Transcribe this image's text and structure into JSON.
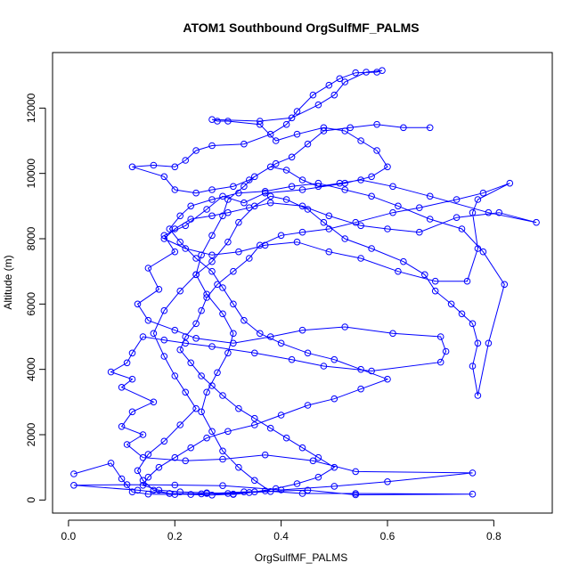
{
  "chart_data": {
    "type": "line",
    "title": "ATOM1 Southbound OrgSulfMF_PALMS",
    "xlabel": "OrgSulfMF_PALMS",
    "ylabel": "Altitude (m)",
    "xlim": [
      -0.03,
      0.91
    ],
    "ylim": [
      -400,
      13700
    ],
    "xticks": [
      "0.0",
      "0.2",
      "0.4",
      "0.6",
      "0.8"
    ],
    "xtick_values": [
      0.0,
      0.2,
      0.4,
      0.6,
      0.8
    ],
    "yticks": [
      "0",
      "2000",
      "4000",
      "6000",
      "8000",
      "10000",
      "12000"
    ],
    "ytick_values": [
      0,
      2000,
      4000,
      6000,
      8000,
      10000,
      12000
    ],
    "grid": false,
    "legend": "none",
    "series": [
      {
        "marker": "open-circle",
        "line": true,
        "color": "#0000ff",
        "points": [
          [
            0.01,
            800
          ],
          [
            0.08,
            1130
          ],
          [
            0.1,
            650
          ],
          [
            0.12,
            250
          ],
          [
            0.15,
            180
          ],
          [
            0.2,
            170
          ],
          [
            0.26,
            200
          ],
          [
            0.31,
            170
          ],
          [
            0.37,
            280
          ],
          [
            0.44,
            200
          ],
          [
            0.54,
            200
          ],
          [
            0.76,
            180
          ],
          [
            0.54,
            160
          ],
          [
            0.45,
            300
          ],
          [
            0.33,
            250
          ],
          [
            0.25,
            190
          ],
          [
            0.19,
            200
          ],
          [
            0.13,
            300
          ],
          [
            0.01,
            450
          ],
          [
            0.11,
            470
          ],
          [
            0.2,
            460
          ],
          [
            0.29,
            440
          ],
          [
            0.4,
            310
          ],
          [
            0.5,
            420
          ],
          [
            0.6,
            560
          ],
          [
            0.76,
            830
          ],
          [
            0.54,
            870
          ],
          [
            0.46,
            1200
          ],
          [
            0.37,
            1380
          ],
          [
            0.29,
            1250
          ],
          [
            0.22,
            1200
          ],
          [
            0.14,
            1300
          ],
          [
            0.11,
            1700
          ],
          [
            0.14,
            2000
          ],
          [
            0.1,
            2250
          ],
          [
            0.12,
            2700
          ],
          [
            0.16,
            3000
          ],
          [
            0.1,
            3450
          ],
          [
            0.12,
            3700
          ],
          [
            0.08,
            3920
          ],
          [
            0.11,
            4200
          ],
          [
            0.12,
            4500
          ],
          [
            0.14,
            5000
          ],
          [
            0.18,
            4900
          ],
          [
            0.22,
            4800
          ],
          [
            0.27,
            4700
          ],
          [
            0.35,
            4500
          ],
          [
            0.42,
            4300
          ],
          [
            0.48,
            4100
          ],
          [
            0.57,
            3950
          ],
          [
            0.7,
            4220
          ],
          [
            0.71,
            4550
          ],
          [
            0.7,
            5000
          ],
          [
            0.61,
            5100
          ],
          [
            0.52,
            5300
          ],
          [
            0.44,
            5200
          ],
          [
            0.38,
            5000
          ],
          [
            0.31,
            4800
          ],
          [
            0.24,
            4950
          ],
          [
            0.2,
            5200
          ],
          [
            0.15,
            5500
          ],
          [
            0.13,
            6000
          ],
          [
            0.17,
            6450
          ],
          [
            0.15,
            7100
          ],
          [
            0.2,
            7600
          ],
          [
            0.18,
            8100
          ],
          [
            0.22,
            8400
          ],
          [
            0.26,
            8900
          ],
          [
            0.29,
            9300
          ],
          [
            0.33,
            9100
          ],
          [
            0.37,
            9400
          ],
          [
            0.44,
            9500
          ],
          [
            0.52,
            9700
          ],
          [
            0.57,
            9900
          ],
          [
            0.6,
            10200
          ],
          [
            0.58,
            10700
          ],
          [
            0.55,
            11000
          ],
          [
            0.52,
            11300
          ],
          [
            0.48,
            11400
          ],
          [
            0.43,
            11200
          ],
          [
            0.39,
            11000
          ],
          [
            0.36,
            11500
          ],
          [
            0.3,
            11600
          ],
          [
            0.28,
            11600
          ],
          [
            0.27,
            11650
          ],
          [
            0.36,
            11600
          ],
          [
            0.42,
            11700
          ],
          [
            0.47,
            12100
          ],
          [
            0.5,
            12400
          ],
          [
            0.52,
            12800
          ],
          [
            0.56,
            13100
          ],
          [
            0.59,
            13150
          ],
          [
            0.58,
            13100
          ],
          [
            0.54,
            13080
          ],
          [
            0.51,
            12900
          ],
          [
            0.49,
            12700
          ],
          [
            0.46,
            12400
          ],
          [
            0.43,
            11900
          ],
          [
            0.41,
            11500
          ],
          [
            0.38,
            11200
          ],
          [
            0.33,
            10900
          ],
          [
            0.27,
            10850
          ],
          [
            0.24,
            10700
          ],
          [
            0.22,
            10400
          ],
          [
            0.2,
            10200
          ],
          [
            0.16,
            10250
          ],
          [
            0.12,
            10200
          ],
          [
            0.18,
            9900
          ],
          [
            0.2,
            9500
          ],
          [
            0.24,
            9400
          ],
          [
            0.27,
            9500
          ],
          [
            0.31,
            9600
          ],
          [
            0.34,
            9800
          ],
          [
            0.38,
            10200
          ],
          [
            0.41,
            10100
          ],
          [
            0.44,
            9800
          ],
          [
            0.47,
            9600
          ],
          [
            0.51,
            9700
          ],
          [
            0.55,
            9800
          ],
          [
            0.61,
            9600
          ],
          [
            0.68,
            9300
          ],
          [
            0.79,
            8800
          ],
          [
            0.88,
            8500
          ],
          [
            0.81,
            8800
          ],
          [
            0.73,
            8650
          ],
          [
            0.66,
            8200
          ],
          [
            0.6,
            8300
          ],
          [
            0.55,
            8400
          ],
          [
            0.49,
            8700
          ],
          [
            0.44,
            9000
          ],
          [
            0.38,
            9100
          ],
          [
            0.34,
            8950
          ],
          [
            0.3,
            8800
          ],
          [
            0.27,
            8700
          ],
          [
            0.23,
            8600
          ],
          [
            0.2,
            8300
          ],
          [
            0.18,
            8000
          ],
          [
            0.22,
            7700
          ],
          [
            0.27,
            7500
          ],
          [
            0.32,
            7600
          ],
          [
            0.37,
            7800
          ],
          [
            0.43,
            7900
          ],
          [
            0.49,
            7600
          ],
          [
            0.55,
            7400
          ],
          [
            0.62,
            7000
          ],
          [
            0.69,
            6700
          ],
          [
            0.75,
            6700
          ],
          [
            0.77,
            7700
          ],
          [
            0.76,
            8800
          ],
          [
            0.77,
            9200
          ],
          [
            0.83,
            9700
          ],
          [
            0.78,
            9400
          ],
          [
            0.73,
            9200
          ],
          [
            0.66,
            8950
          ],
          [
            0.61,
            8800
          ],
          [
            0.54,
            8500
          ],
          [
            0.49,
            8300
          ],
          [
            0.44,
            8200
          ],
          [
            0.4,
            8100
          ],
          [
            0.36,
            7800
          ],
          [
            0.34,
            7400
          ],
          [
            0.31,
            7000
          ],
          [
            0.28,
            6600
          ],
          [
            0.26,
            6200
          ],
          [
            0.25,
            5800
          ],
          [
            0.24,
            5400
          ],
          [
            0.22,
            5000
          ],
          [
            0.21,
            4600
          ],
          [
            0.23,
            4200
          ],
          [
            0.25,
            3800
          ],
          [
            0.27,
            3500
          ],
          [
            0.29,
            3200
          ],
          [
            0.32,
            2800
          ],
          [
            0.35,
            2500
          ],
          [
            0.38,
            2200
          ],
          [
            0.41,
            1900
          ],
          [
            0.44,
            1600
          ],
          [
            0.47,
            1300
          ],
          [
            0.5,
            1000
          ],
          [
            0.47,
            700
          ],
          [
            0.43,
            500
          ],
          [
            0.39,
            350
          ],
          [
            0.35,
            250
          ],
          [
            0.31,
            180
          ],
          [
            0.27,
            150
          ],
          [
            0.23,
            170
          ],
          [
            0.19,
            200
          ],
          [
            0.16,
            300
          ],
          [
            0.14,
            600
          ],
          [
            0.13,
            900
          ],
          [
            0.15,
            1400
          ],
          [
            0.18,
            1800
          ],
          [
            0.21,
            2300
          ],
          [
            0.24,
            2800
          ],
          [
            0.22,
            3300
          ],
          [
            0.2,
            3800
          ],
          [
            0.18,
            4400
          ],
          [
            0.16,
            5100
          ],
          [
            0.18,
            5800
          ],
          [
            0.21,
            6400
          ],
          [
            0.24,
            6900
          ],
          [
            0.27,
            7300
          ],
          [
            0.3,
            7900
          ],
          [
            0.32,
            8500
          ],
          [
            0.35,
            9000
          ],
          [
            0.38,
            9300
          ],
          [
            0.41,
            9200
          ],
          [
            0.45,
            8900
          ],
          [
            0.48,
            8500
          ],
          [
            0.52,
            8000
          ],
          [
            0.57,
            7700
          ],
          [
            0.63,
            7300
          ],
          [
            0.67,
            6900
          ],
          [
            0.69,
            6400
          ],
          [
            0.72,
            6000
          ],
          [
            0.74,
            5700
          ],
          [
            0.76,
            5400
          ],
          [
            0.77,
            4800
          ],
          [
            0.76,
            4100
          ],
          [
            0.77,
            3200
          ],
          [
            0.79,
            4800
          ],
          [
            0.82,
            6600
          ],
          [
            0.78,
            7600
          ],
          [
            0.74,
            8300
          ],
          [
            0.68,
            8600
          ],
          [
            0.62,
            9000
          ],
          [
            0.57,
            9300
          ],
          [
            0.52,
            9500
          ],
          [
            0.47,
            9700
          ],
          [
            0.42,
            9600
          ],
          [
            0.37,
            9450
          ],
          [
            0.32,
            9400
          ],
          [
            0.27,
            9200
          ],
          [
            0.23,
            9000
          ],
          [
            0.21,
            8700
          ],
          [
            0.19,
            8300
          ],
          [
            0.21,
            7900
          ],
          [
            0.24,
            7400
          ],
          [
            0.27,
            7000
          ],
          [
            0.29,
            6500
          ],
          [
            0.31,
            6000
          ],
          [
            0.33,
            5500
          ],
          [
            0.36,
            5100
          ],
          [
            0.4,
            4800
          ],
          [
            0.45,
            4500
          ],
          [
            0.5,
            4300
          ],
          [
            0.55,
            4000
          ],
          [
            0.6,
            3700
          ],
          [
            0.55,
            3400
          ],
          [
            0.5,
            3100
          ],
          [
            0.45,
            2900
          ],
          [
            0.4,
            2600
          ],
          [
            0.35,
            2300
          ],
          [
            0.3,
            2100
          ],
          [
            0.26,
            1900
          ],
          [
            0.23,
            1600
          ],
          [
            0.2,
            1300
          ],
          [
            0.17,
            1000
          ],
          [
            0.15,
            700
          ],
          [
            0.14,
            450
          ],
          [
            0.17,
            300
          ],
          [
            0.21,
            250
          ],
          [
            0.26,
            220
          ],
          [
            0.3,
            200
          ],
          [
            0.34,
            230
          ],
          [
            0.38,
            260
          ],
          [
            0.35,
            600
          ],
          [
            0.32,
            1000
          ],
          [
            0.29,
            1500
          ],
          [
            0.27,
            2100
          ],
          [
            0.25,
            2700
          ],
          [
            0.26,
            3300
          ],
          [
            0.28,
            3900
          ],
          [
            0.3,
            4500
          ],
          [
            0.31,
            5100
          ],
          [
            0.29,
            5700
          ],
          [
            0.26,
            6300
          ],
          [
            0.24,
            6900
          ],
          [
            0.25,
            7500
          ],
          [
            0.27,
            8100
          ],
          [
            0.29,
            8700
          ],
          [
            0.3,
            9200
          ],
          [
            0.33,
            9600
          ],
          [
            0.35,
            9900
          ],
          [
            0.39,
            10300
          ],
          [
            0.42,
            10500
          ],
          [
            0.45,
            10900
          ],
          [
            0.48,
            11300
          ],
          [
            0.53,
            11400
          ],
          [
            0.58,
            11500
          ],
          [
            0.63,
            11400
          ],
          [
            0.68,
            11400
          ]
        ]
      }
    ]
  }
}
